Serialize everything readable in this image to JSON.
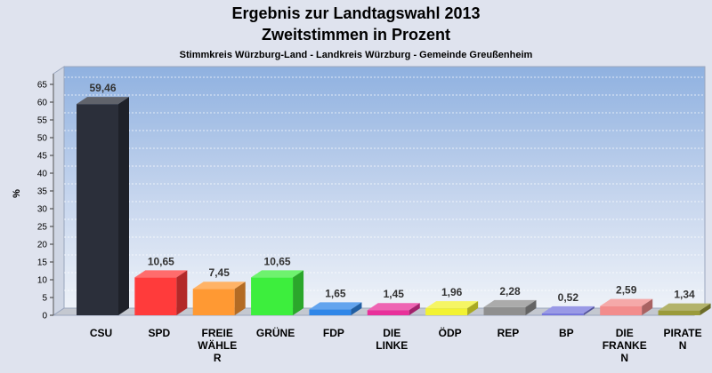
{
  "chart_data": {
    "type": "bar",
    "title": "Ergebnis zur Landtagswahl 2013",
    "subtitle": "Zweitstimmen in Prozent",
    "subsubtitle": "Stimmkreis Würzburg-Land - Landkreis Würzburg - Gemeinde Greußenheim",
    "ylabel": "%",
    "xlabel": "",
    "ylim": [
      0,
      68
    ],
    "yticks": [
      0,
      5,
      10,
      15,
      20,
      25,
      30,
      35,
      40,
      45,
      50,
      55,
      60,
      65
    ],
    "grid": true,
    "categories": [
      "CSU",
      "SPD",
      "FREIE WÄHLER",
      "GRÜNE",
      "FDP",
      "DIE LINKE",
      "ÖDP",
      "REP",
      "BP",
      "DIE FRANKEN",
      "PIRATEN"
    ],
    "category_lines": [
      [
        "CSU"
      ],
      [
        "SPD"
      ],
      [
        "FREIE",
        "WÄHLE",
        "R"
      ],
      [
        "GRÜNE"
      ],
      [
        "FDP"
      ],
      [
        "DIE",
        "LINKE"
      ],
      [
        "ÖDP"
      ],
      [
        "REP"
      ],
      [
        "BP"
      ],
      [
        "DIE",
        "FRANKE",
        "N"
      ],
      [
        "PIRATE",
        "N"
      ]
    ],
    "values": [
      59.46,
      10.65,
      7.45,
      10.65,
      1.65,
      1.45,
      1.96,
      2.28,
      0.52,
      2.59,
      1.34
    ],
    "value_labels": [
      "59,46",
      "10,65",
      "7,45",
      "10,65",
      "1,65",
      "1,45",
      "1,96",
      "2,28",
      "0,52",
      "2,59",
      "1,34"
    ],
    "colors": [
      "#2b2f3a",
      "#ff3b3b",
      "#ff9933",
      "#3dee3d",
      "#2f86e8",
      "#e8309a",
      "#f2f232",
      "#8f8f8f",
      "#7777dd",
      "#f28c8c",
      "#9a9a3a"
    ]
  }
}
